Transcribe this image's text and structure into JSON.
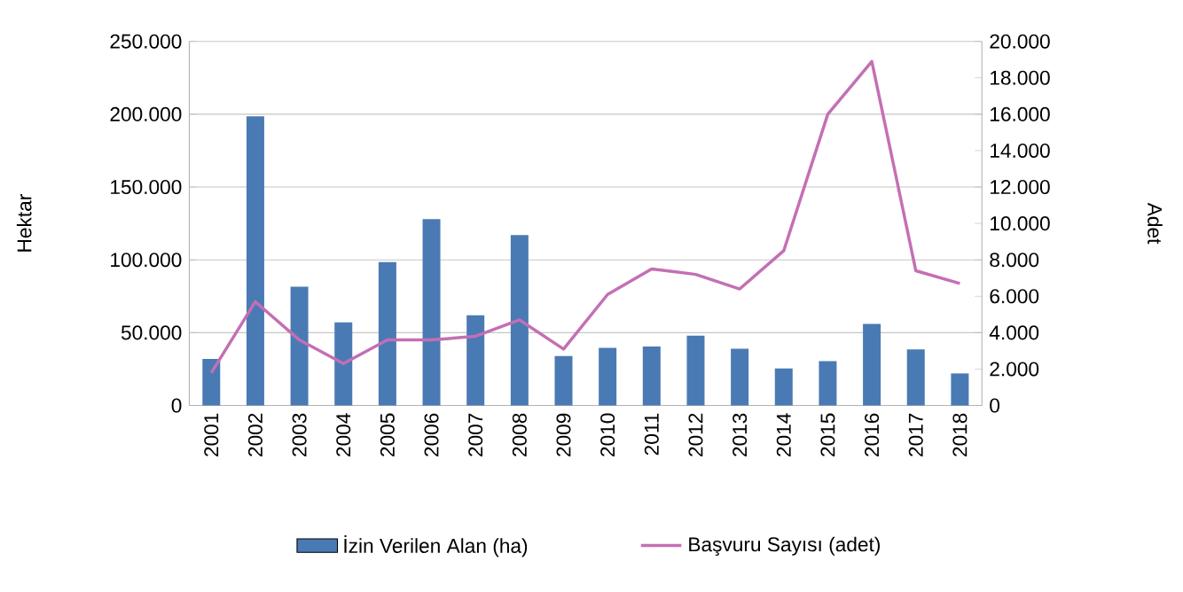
{
  "chart_data": {
    "type": "bar",
    "ylabel": "Hektar",
    "y2label": "Adet",
    "categories": [
      "2001",
      "2002",
      "2003",
      "2004",
      "2005",
      "2006",
      "2007",
      "2008",
      "2009",
      "2010",
      "2011",
      "2012",
      "2013",
      "2014",
      "2015",
      "2016",
      "2017",
      "2018"
    ],
    "series": [
      {
        "name": "İzin Verilen Alan (ha)",
        "color": "#4a7ab4",
        "values": [
          32000,
          198500,
          81500,
          57000,
          98500,
          128000,
          62000,
          117000,
          34000,
          39500,
          40500,
          48000,
          39000,
          25500,
          30500,
          56000,
          38500,
          22000
        ]
      },
      {
        "name": "Başvuru Sayısı (adet)",
        "type": "line",
        "axis": "y2",
        "color": "#c46fb4",
        "values": [
          1800,
          5700,
          3600,
          2300,
          3600,
          3600,
          3800,
          4700,
          3100,
          6100,
          7500,
          7200,
          6400,
          8500,
          16000,
          18900,
          7400,
          6700
        ]
      }
    ],
    "ylim": [
      0,
      250000
    ],
    "yticks": [
      {
        "value": 0,
        "label": "0"
      },
      {
        "value": 50000,
        "label": "50.000"
      },
      {
        "value": 100000,
        "label": "100.000"
      },
      {
        "value": 150000,
        "label": "150.000"
      },
      {
        "value": 200000,
        "label": "200.000"
      },
      {
        "value": 250000,
        "label": "250.000"
      }
    ],
    "y2lim": [
      0,
      20000
    ],
    "y2ticks": [
      {
        "value": 0,
        "label": "0"
      },
      {
        "value": 2000,
        "label": "2.000"
      },
      {
        "value": 4000,
        "label": "4.000"
      },
      {
        "value": 6000,
        "label": "6.000"
      },
      {
        "value": 8000,
        "label": "8.000"
      },
      {
        "value": 10000,
        "label": "10.000"
      },
      {
        "value": 12000,
        "label": "12.000"
      },
      {
        "value": 14000,
        "label": "14.000"
      },
      {
        "value": 16000,
        "label": "16.000"
      },
      {
        "value": 18000,
        "label": "18.000"
      },
      {
        "value": 20000,
        "label": "20.000"
      }
    ],
    "grid": "y",
    "legend": "bottom"
  }
}
